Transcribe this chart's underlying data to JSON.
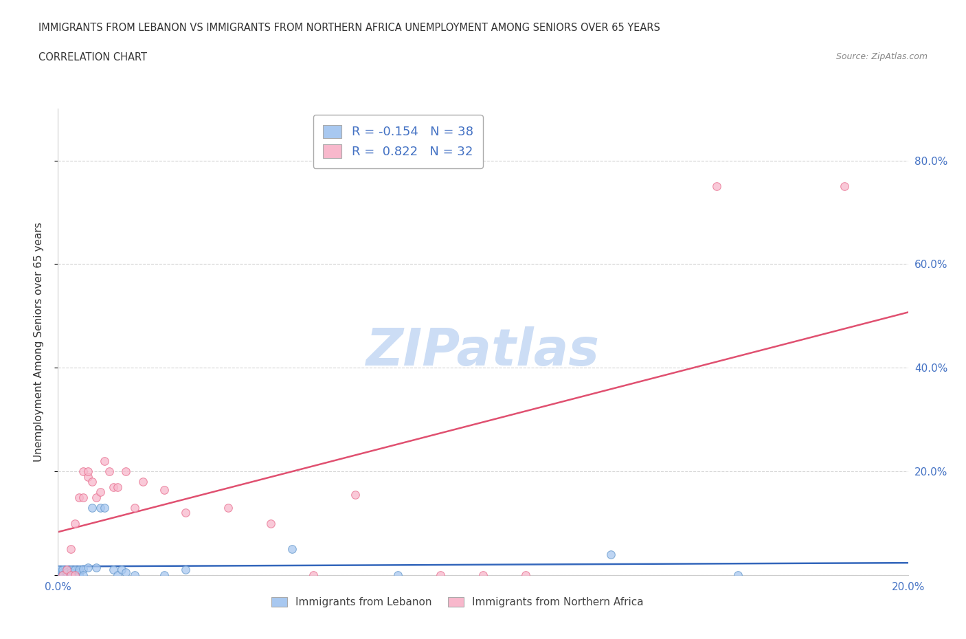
{
  "title_line1": "IMMIGRANTS FROM LEBANON VS IMMIGRANTS FROM NORTHERN AFRICA UNEMPLOYMENT AMONG SENIORS OVER 65 YEARS",
  "title_line2": "CORRELATION CHART",
  "source_text": "Source: ZipAtlas.com",
  "ylabel": "Unemployment Among Seniors over 65 years",
  "watermark": "ZIPatlas",
  "legend1_label": "Immigrants from Lebanon",
  "legend2_label": "Immigrants from Northern Africa",
  "r1": -0.154,
  "n1": 38,
  "r2": 0.822,
  "n2": 32,
  "lebanon_x": [
    0.0,
    0.0,
    0.0,
    0.001,
    0.001,
    0.001,
    0.001,
    0.002,
    0.002,
    0.002,
    0.002,
    0.003,
    0.003,
    0.003,
    0.004,
    0.004,
    0.005,
    0.005,
    0.005,
    0.005,
    0.006,
    0.006,
    0.007,
    0.008,
    0.009,
    0.01,
    0.011,
    0.013,
    0.014,
    0.015,
    0.016,
    0.018,
    0.025,
    0.03,
    0.055,
    0.08,
    0.13,
    0.16
  ],
  "lebanon_y": [
    0.0,
    0.005,
    0.01,
    0.0,
    0.005,
    0.01,
    0.0,
    0.005,
    0.0,
    0.01,
    0.005,
    0.0,
    0.01,
    0.005,
    0.0,
    0.01,
    0.008,
    0.005,
    0.0,
    0.01,
    0.012,
    0.0,
    0.015,
    0.13,
    0.015,
    0.13,
    0.13,
    0.01,
    0.0,
    0.01,
    0.005,
    0.0,
    0.0,
    0.01,
    0.05,
    0.0,
    0.04,
    0.0
  ],
  "n_africa_x": [
    0.001,
    0.002,
    0.003,
    0.003,
    0.004,
    0.004,
    0.005,
    0.006,
    0.006,
    0.007,
    0.007,
    0.008,
    0.009,
    0.01,
    0.011,
    0.012,
    0.013,
    0.014,
    0.016,
    0.018,
    0.02,
    0.025,
    0.03,
    0.04,
    0.05,
    0.06,
    0.07,
    0.09,
    0.1,
    0.11,
    0.155,
    0.185
  ],
  "n_africa_y": [
    0.0,
    0.01,
    0.05,
    0.0,
    0.1,
    0.0,
    0.15,
    0.2,
    0.15,
    0.19,
    0.2,
    0.18,
    0.15,
    0.16,
    0.22,
    0.2,
    0.17,
    0.17,
    0.2,
    0.13,
    0.18,
    0.165,
    0.12,
    0.13,
    0.1,
    0.0,
    0.155,
    0.0,
    0.0,
    0.0,
    0.75,
    0.75
  ],
  "ylim": [
    0.0,
    0.9
  ],
  "xlim": [
    0.0,
    0.2
  ],
  "yticks": [
    0.0,
    0.2,
    0.4,
    0.6,
    0.8
  ],
  "ytick_labels": [
    "",
    "20.0%",
    "40.0%",
    "60.0%",
    "80.0%"
  ],
  "xticks": [
    0.0,
    0.05,
    0.1,
    0.15,
    0.2
  ],
  "xtick_labels": [
    "0.0%",
    "",
    "",
    "",
    "20.0%"
  ],
  "lebanon_color": "#a8c8f0",
  "lebanon_edge_color": "#6699cc",
  "lebanon_line_color": "#3366bb",
  "n_africa_color": "#f8b8cc",
  "n_africa_edge_color": "#e87090",
  "n_africa_line_color": "#e05070",
  "grid_color": "#c8c8c8",
  "background_color": "#ffffff",
  "title_color": "#333333",
  "tick_label_color": "#4472c4",
  "legend_r_color": "#4472c4",
  "watermark_color": "#ccddf5",
  "marker_size": 70
}
